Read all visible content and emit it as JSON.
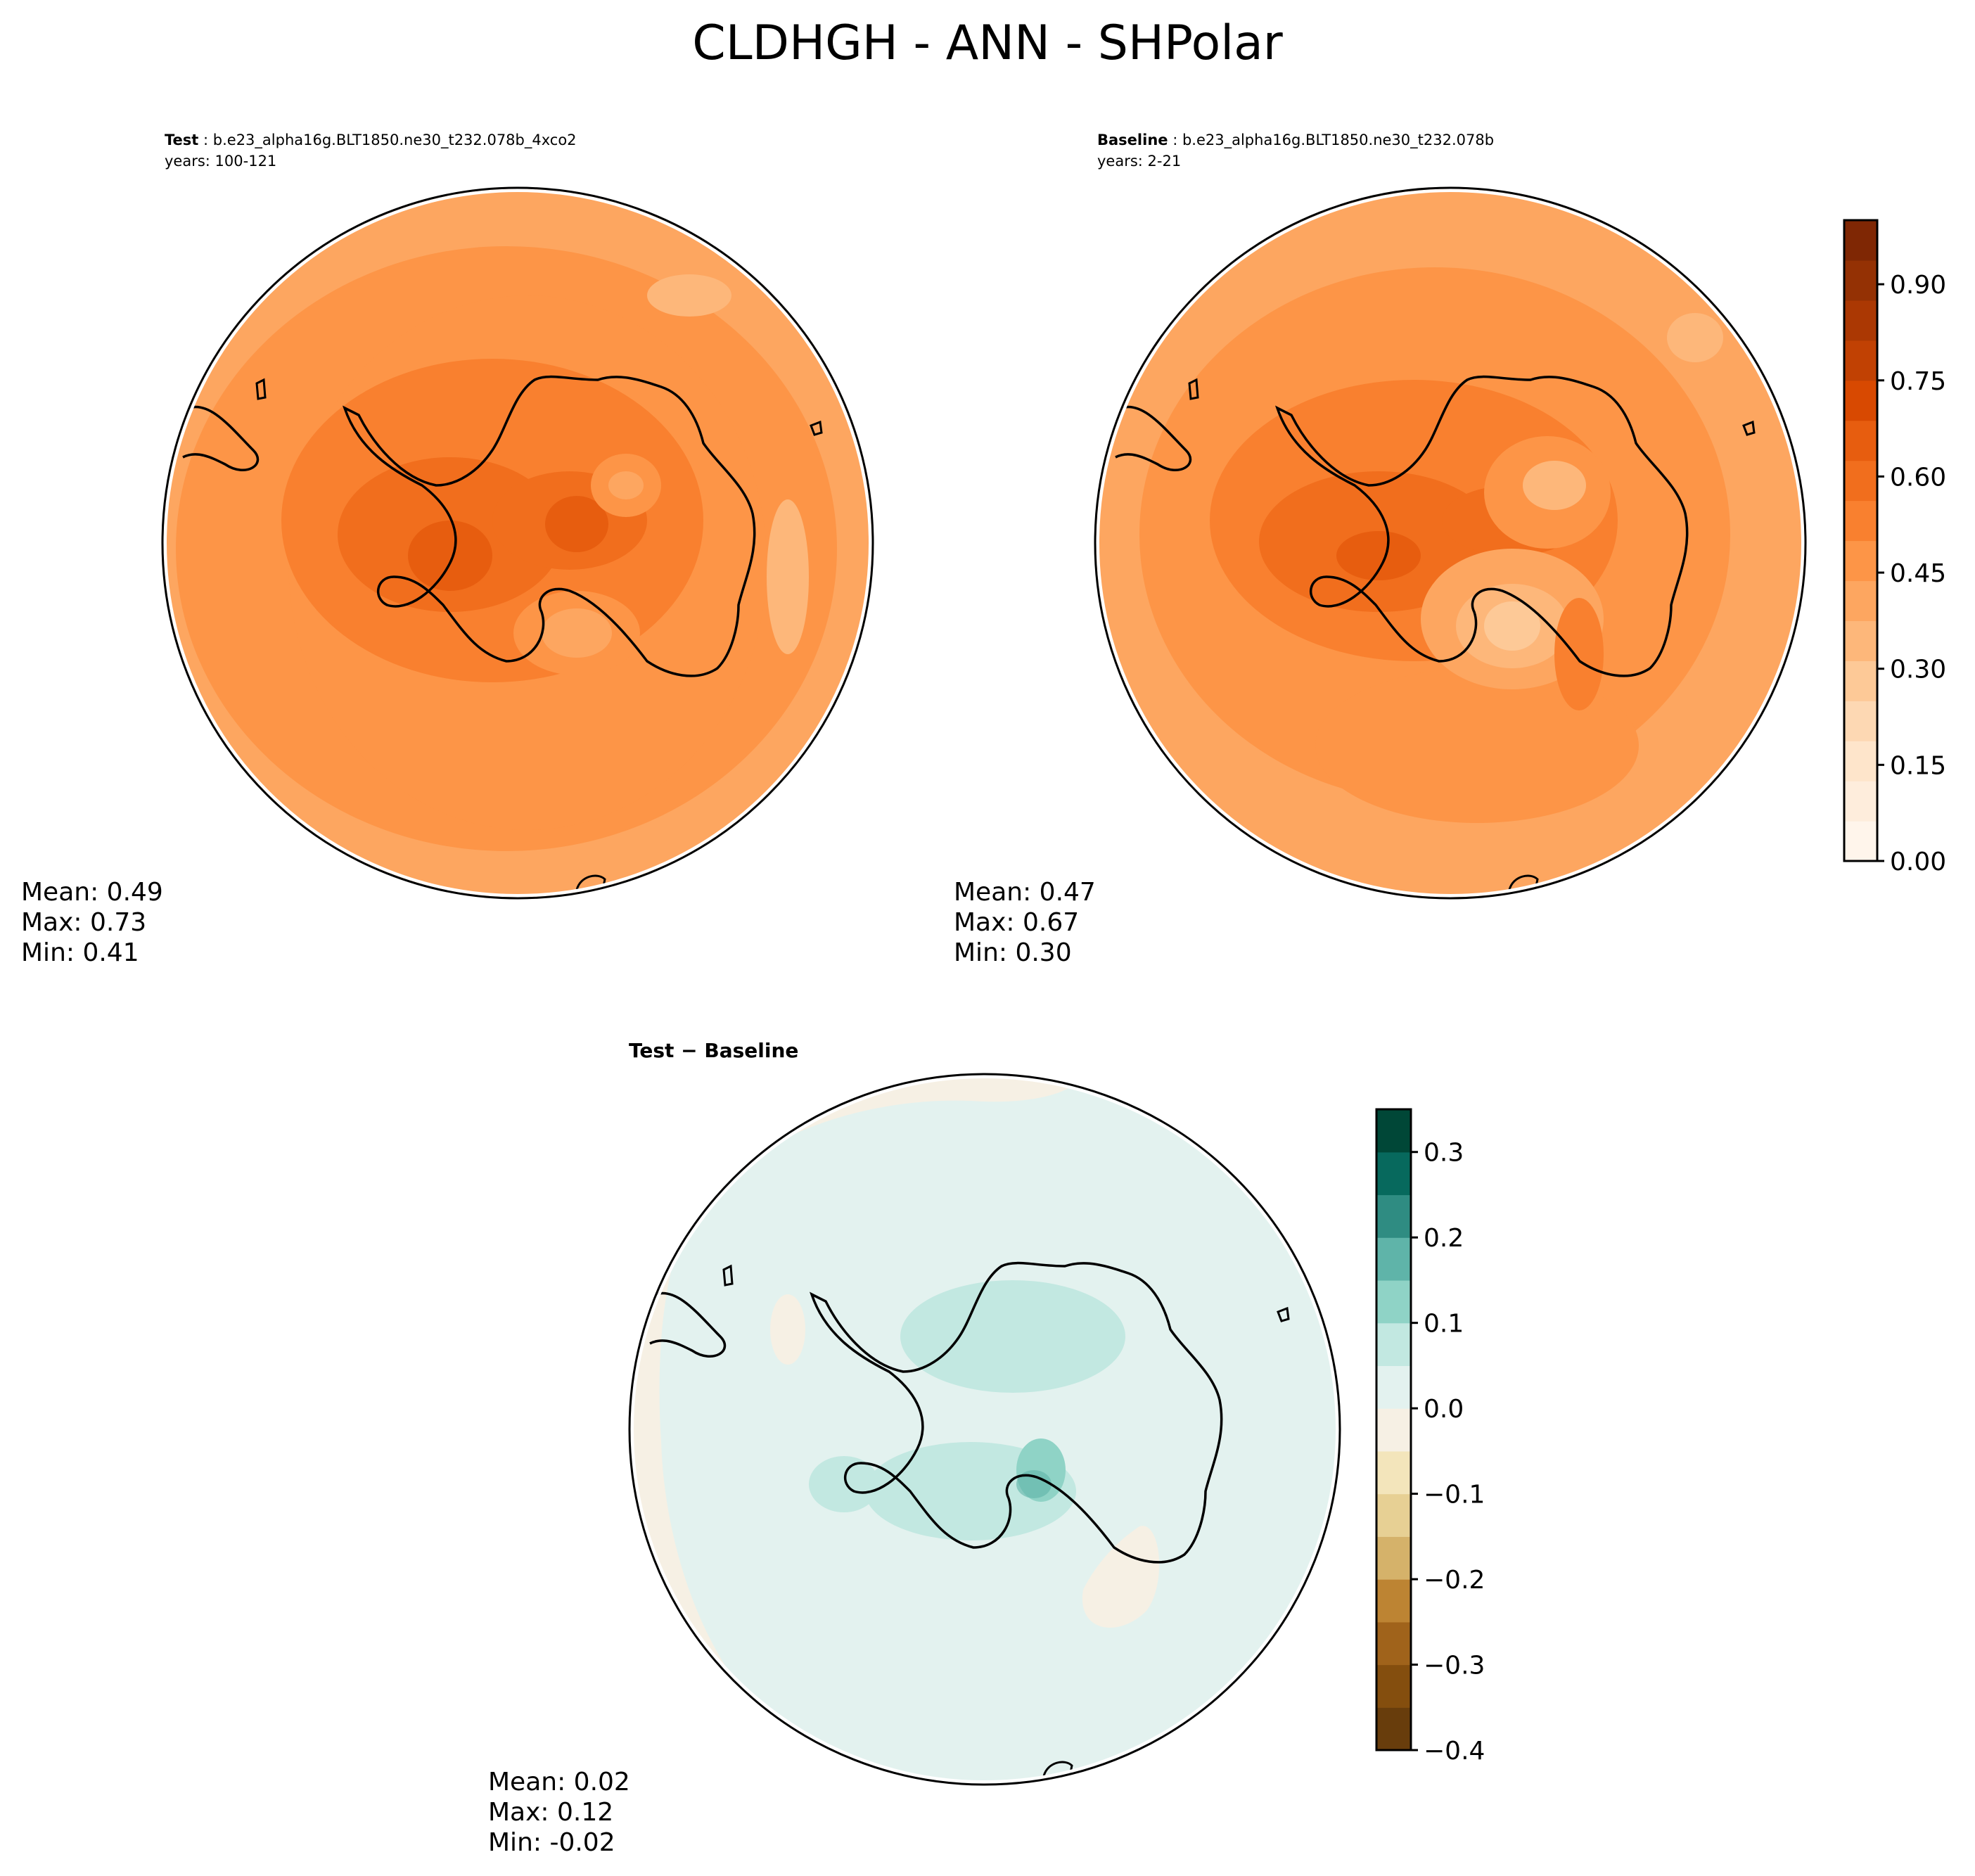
{
  "title": "CLDHGH - ANN - SHPolar",
  "test_panel": {
    "label": "Test",
    "case": "b.e23_alpha16g.BLT1850.ne30_t232.078b_4xco2",
    "years": "years: 100-121",
    "stats": {
      "mean": "Mean:  0.49",
      "max": "Max:  0.73",
      "min": "Min:  0.41"
    }
  },
  "baseline_panel": {
    "label": "Baseline",
    "case": "b.e23_alpha16g.BLT1850.ne30_t232.078b",
    "years": "years: 2-21",
    "stats": {
      "mean": "Mean:  0.47",
      "max": "Max:  0.67",
      "min": "Min:  0.30"
    }
  },
  "diff_panel": {
    "label": "Test − Baseline",
    "stats": {
      "mean": "Mean:  0.02",
      "max": "Max:  0.12",
      "min": "Min: -0.02"
    }
  },
  "colorbar_main": {
    "range": [
      0.0,
      1.0
    ],
    "ticks": [
      "0.00",
      "0.15",
      "0.30",
      "0.45",
      "0.60",
      "0.75",
      "0.90"
    ],
    "tick_values": [
      0.0,
      0.15,
      0.3,
      0.45,
      0.6,
      0.75,
      0.9
    ],
    "colors": [
      "#fff5eb",
      "#feeddc",
      "#fee5cb",
      "#fdd8b3",
      "#fdc997",
      "#fdb77a",
      "#fda660",
      "#fd9547",
      "#f9802f",
      "#f16e1d",
      "#e75d0f",
      "#d84901",
      "#c14103",
      "#ab3803",
      "#943104",
      "#7f2704"
    ]
  },
  "colorbar_diff": {
    "range": [
      -0.4,
      0.35
    ],
    "ticks": [
      "−0.4",
      "−0.3",
      "−0.2",
      "−0.1",
      "0.0",
      "0.1",
      "0.2",
      "0.3"
    ],
    "tick_values": [
      -0.4,
      -0.3,
      -0.2,
      -0.1,
      0.0,
      0.1,
      0.2,
      0.3
    ],
    "colors": [
      "#683d0c",
      "#844e0e",
      "#a0631b",
      "#bd8433",
      "#d5b26a",
      "#e7d094",
      "#f3e5bb",
      "#f6f0e4",
      "#e3f2ef",
      "#c2e8e1",
      "#8fd3c6",
      "#5fb4a9",
      "#2f8c82",
      "#07695d",
      "#004737"
    ]
  }
}
